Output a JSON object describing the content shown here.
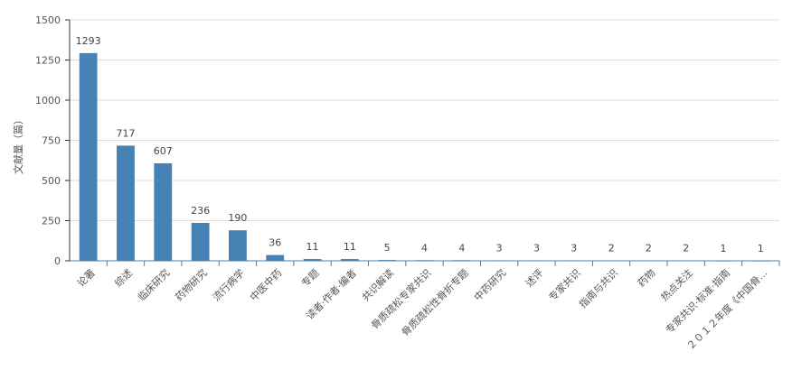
{
  "chart_data": {
    "type": "bar",
    "ylabel": "文献量（篇）",
    "ylim": [
      0,
      1500
    ],
    "yticks": [
      0,
      250,
      500,
      750,
      1000,
      1250,
      1500
    ],
    "grid": true,
    "categories": [
      "论著",
      "综述",
      "临床研究",
      "药物研究",
      "流行病学",
      "中医中药",
      "专题",
      "读者·作者·编者",
      "共识解读",
      "骨质疏松专家共识",
      "骨质疏松性骨折专题",
      "中药研究",
      "述评",
      "专家共识",
      "指南与共识",
      "药物",
      "热点关注",
      "专家共识·标准·指南",
      "２０１２年度《中国骨..."
    ],
    "values": [
      1293,
      717,
      607,
      236,
      190,
      36,
      11,
      11,
      5,
      4,
      4,
      3,
      3,
      3,
      2,
      2,
      2,
      1,
      1
    ],
    "colors": {
      "bar": "#4682b4",
      "grid": "#dddddd",
      "axis": "#333333"
    }
  }
}
